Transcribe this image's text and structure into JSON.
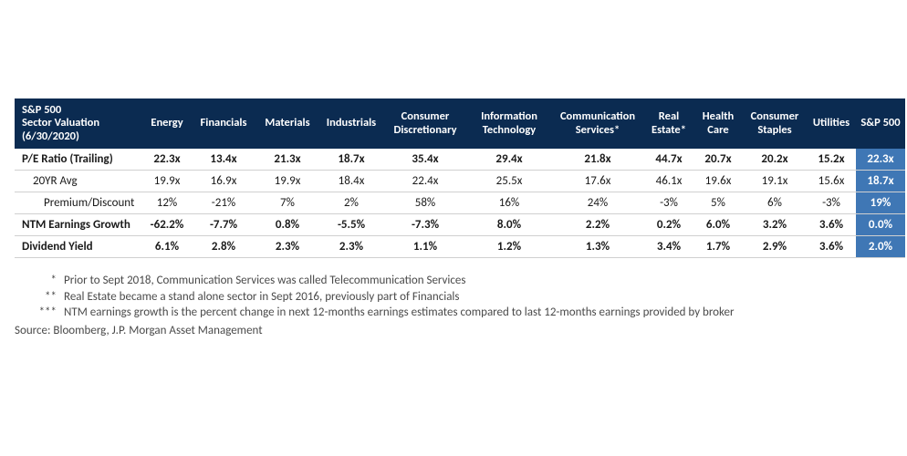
{
  "table": {
    "title_line1": "S&P 500",
    "title_line2": "Sector Valuation",
    "title_line3": "(6/30/2020)",
    "header_bg": "#0b2b51",
    "header_fg": "#ffffff",
    "sp500_bg": "#3f77b5",
    "sp500_fg": "#ffffff",
    "row_border": "#d0d0d0",
    "columns": [
      "Energy",
      "Financials",
      "Materials",
      "Industrials",
      "Consumer Discretionary",
      "Information Technology",
      "Communication Services*",
      "Real Estate*",
      "Health Care",
      "Consumer Staples",
      "Utilities",
      "S&P 500"
    ],
    "rows": [
      {
        "label": "P/E Ratio (Trailing)",
        "class": "bold",
        "cells": [
          "22.3x",
          "13.4x",
          "21.3x",
          "18.7x",
          "35.4x",
          "29.4x",
          "21.8x",
          "44.7x",
          "20.7x",
          "20.2x",
          "15.2x",
          "22.3x"
        ]
      },
      {
        "label": "20YR Avg",
        "class": "sub",
        "cells": [
          "19.9x",
          "16.9x",
          "19.9x",
          "18.4x",
          "22.4x",
          "25.5x",
          "17.6x",
          "46.1x",
          "19.6x",
          "19.1x",
          "15.6x",
          "18.7x"
        ]
      },
      {
        "label": "Premium/Discount",
        "class": "sub2",
        "cells": [
          "12%",
          "-21%",
          "7%",
          "2%",
          "58%",
          "16%",
          "24%",
          "-3%",
          "5%",
          "6%",
          "-3%",
          "19%"
        ]
      },
      {
        "label": "NTM Earnings Growth",
        "class": "bold",
        "cells": [
          "-62.2%",
          "-7.7%",
          "0.8%",
          "-5.5%",
          "-7.3%",
          "8.0%",
          "2.2%",
          "0.2%",
          "6.0%",
          "3.2%",
          "3.6%",
          "0.0%"
        ]
      },
      {
        "label": "Dividend Yield",
        "class": "bold",
        "cells": [
          "6.1%",
          "2.8%",
          "2.3%",
          "2.3%",
          "1.1%",
          "1.2%",
          "1.3%",
          "3.4%",
          "1.7%",
          "2.9%",
          "3.6%",
          "2.0%"
        ]
      }
    ]
  },
  "footnotes": {
    "n1_ast": "*",
    "n1": "Prior to Sept 2018, Communication Services was called Telecommunication Services",
    "n2_ast": "**",
    "n2": "Real Estate became a stand alone sector in Sept 2016, previously part of Financials",
    "n3_ast": "***",
    "n3": "NTM earnings growth is the percent change in next 12-months earnings estimates compared to last 12-months earnings provided by broker",
    "source": "Source: Bloomberg, J.P. Morgan Asset Management"
  }
}
